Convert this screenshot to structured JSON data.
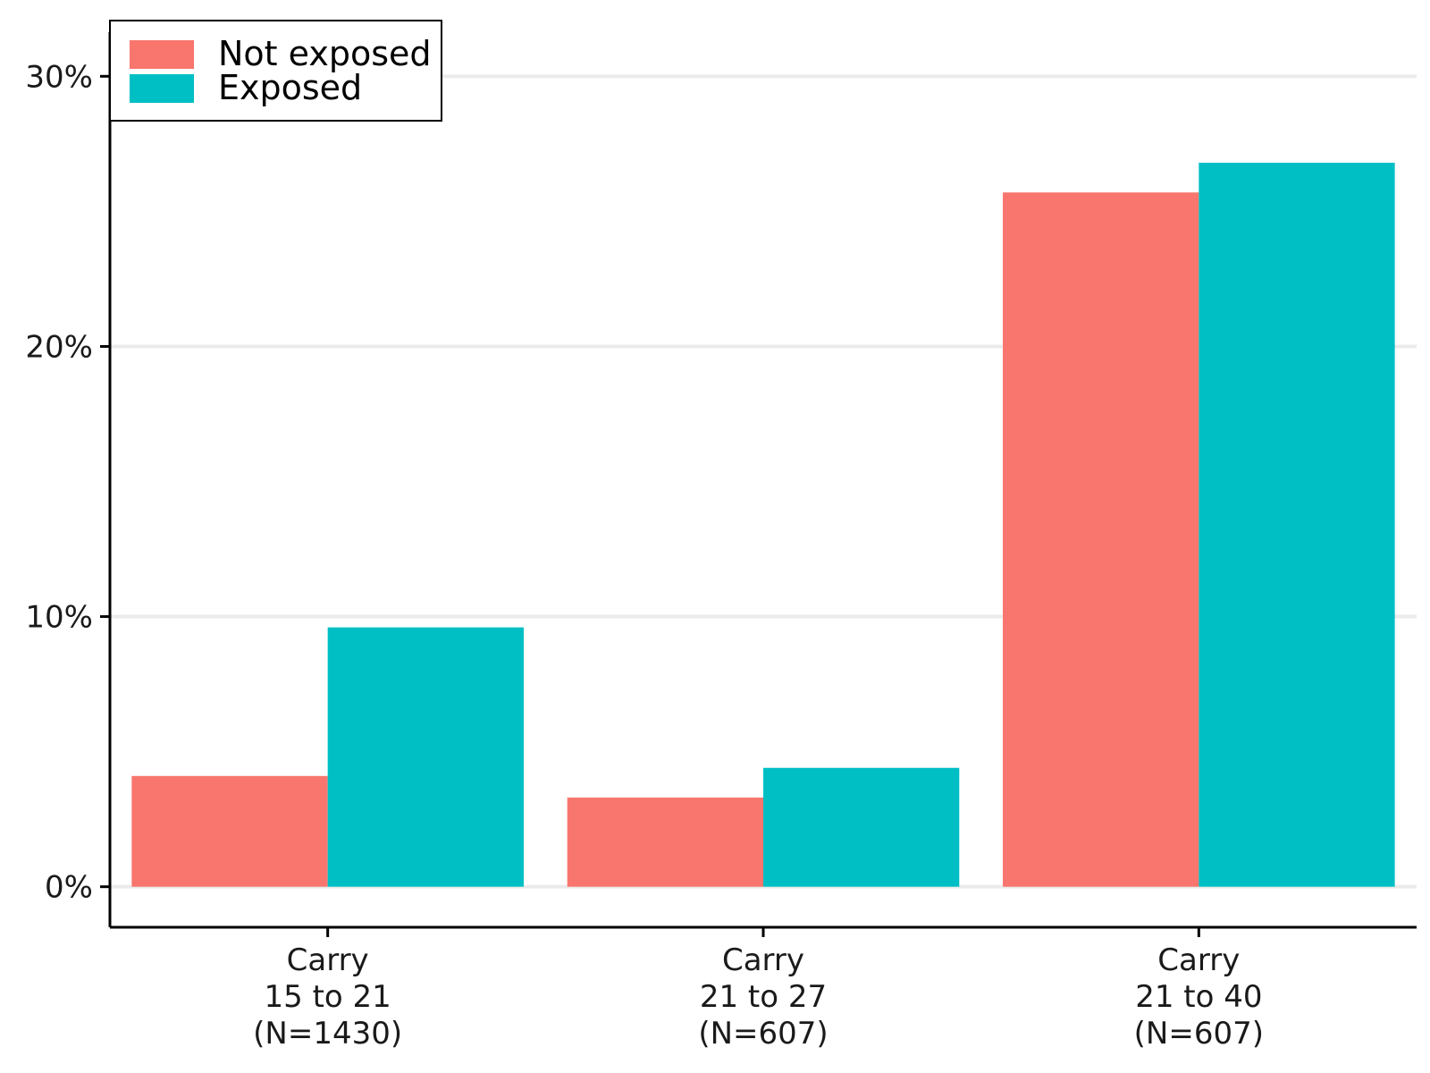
{
  "chart_data": {
    "type": "bar",
    "title": "",
    "xlabel": "",
    "ylabel": "",
    "categories": [
      [
        "Carry",
        "15 to 21",
        "(N=1430)"
      ],
      [
        "Carry",
        "21 to 27",
        "(N=607)"
      ],
      [
        "Carry",
        "21 to 40",
        "(N=607)"
      ]
    ],
    "series": [
      {
        "name": "Not exposed",
        "color": "#F8766D",
        "values": [
          4.1,
          3.3,
          25.7
        ]
      },
      {
        "name": "Exposed",
        "color": "#00BFC4",
        "values": [
          9.6,
          4.4,
          26.8
        ]
      }
    ],
    "ylim": [
      -1.5,
      31.5
    ],
    "yticks": [
      0,
      10,
      20,
      30
    ],
    "ytick_labels": [
      "0%",
      "10%",
      "20%",
      "30%"
    ],
    "grid": true,
    "legend_position": "top-left"
  }
}
